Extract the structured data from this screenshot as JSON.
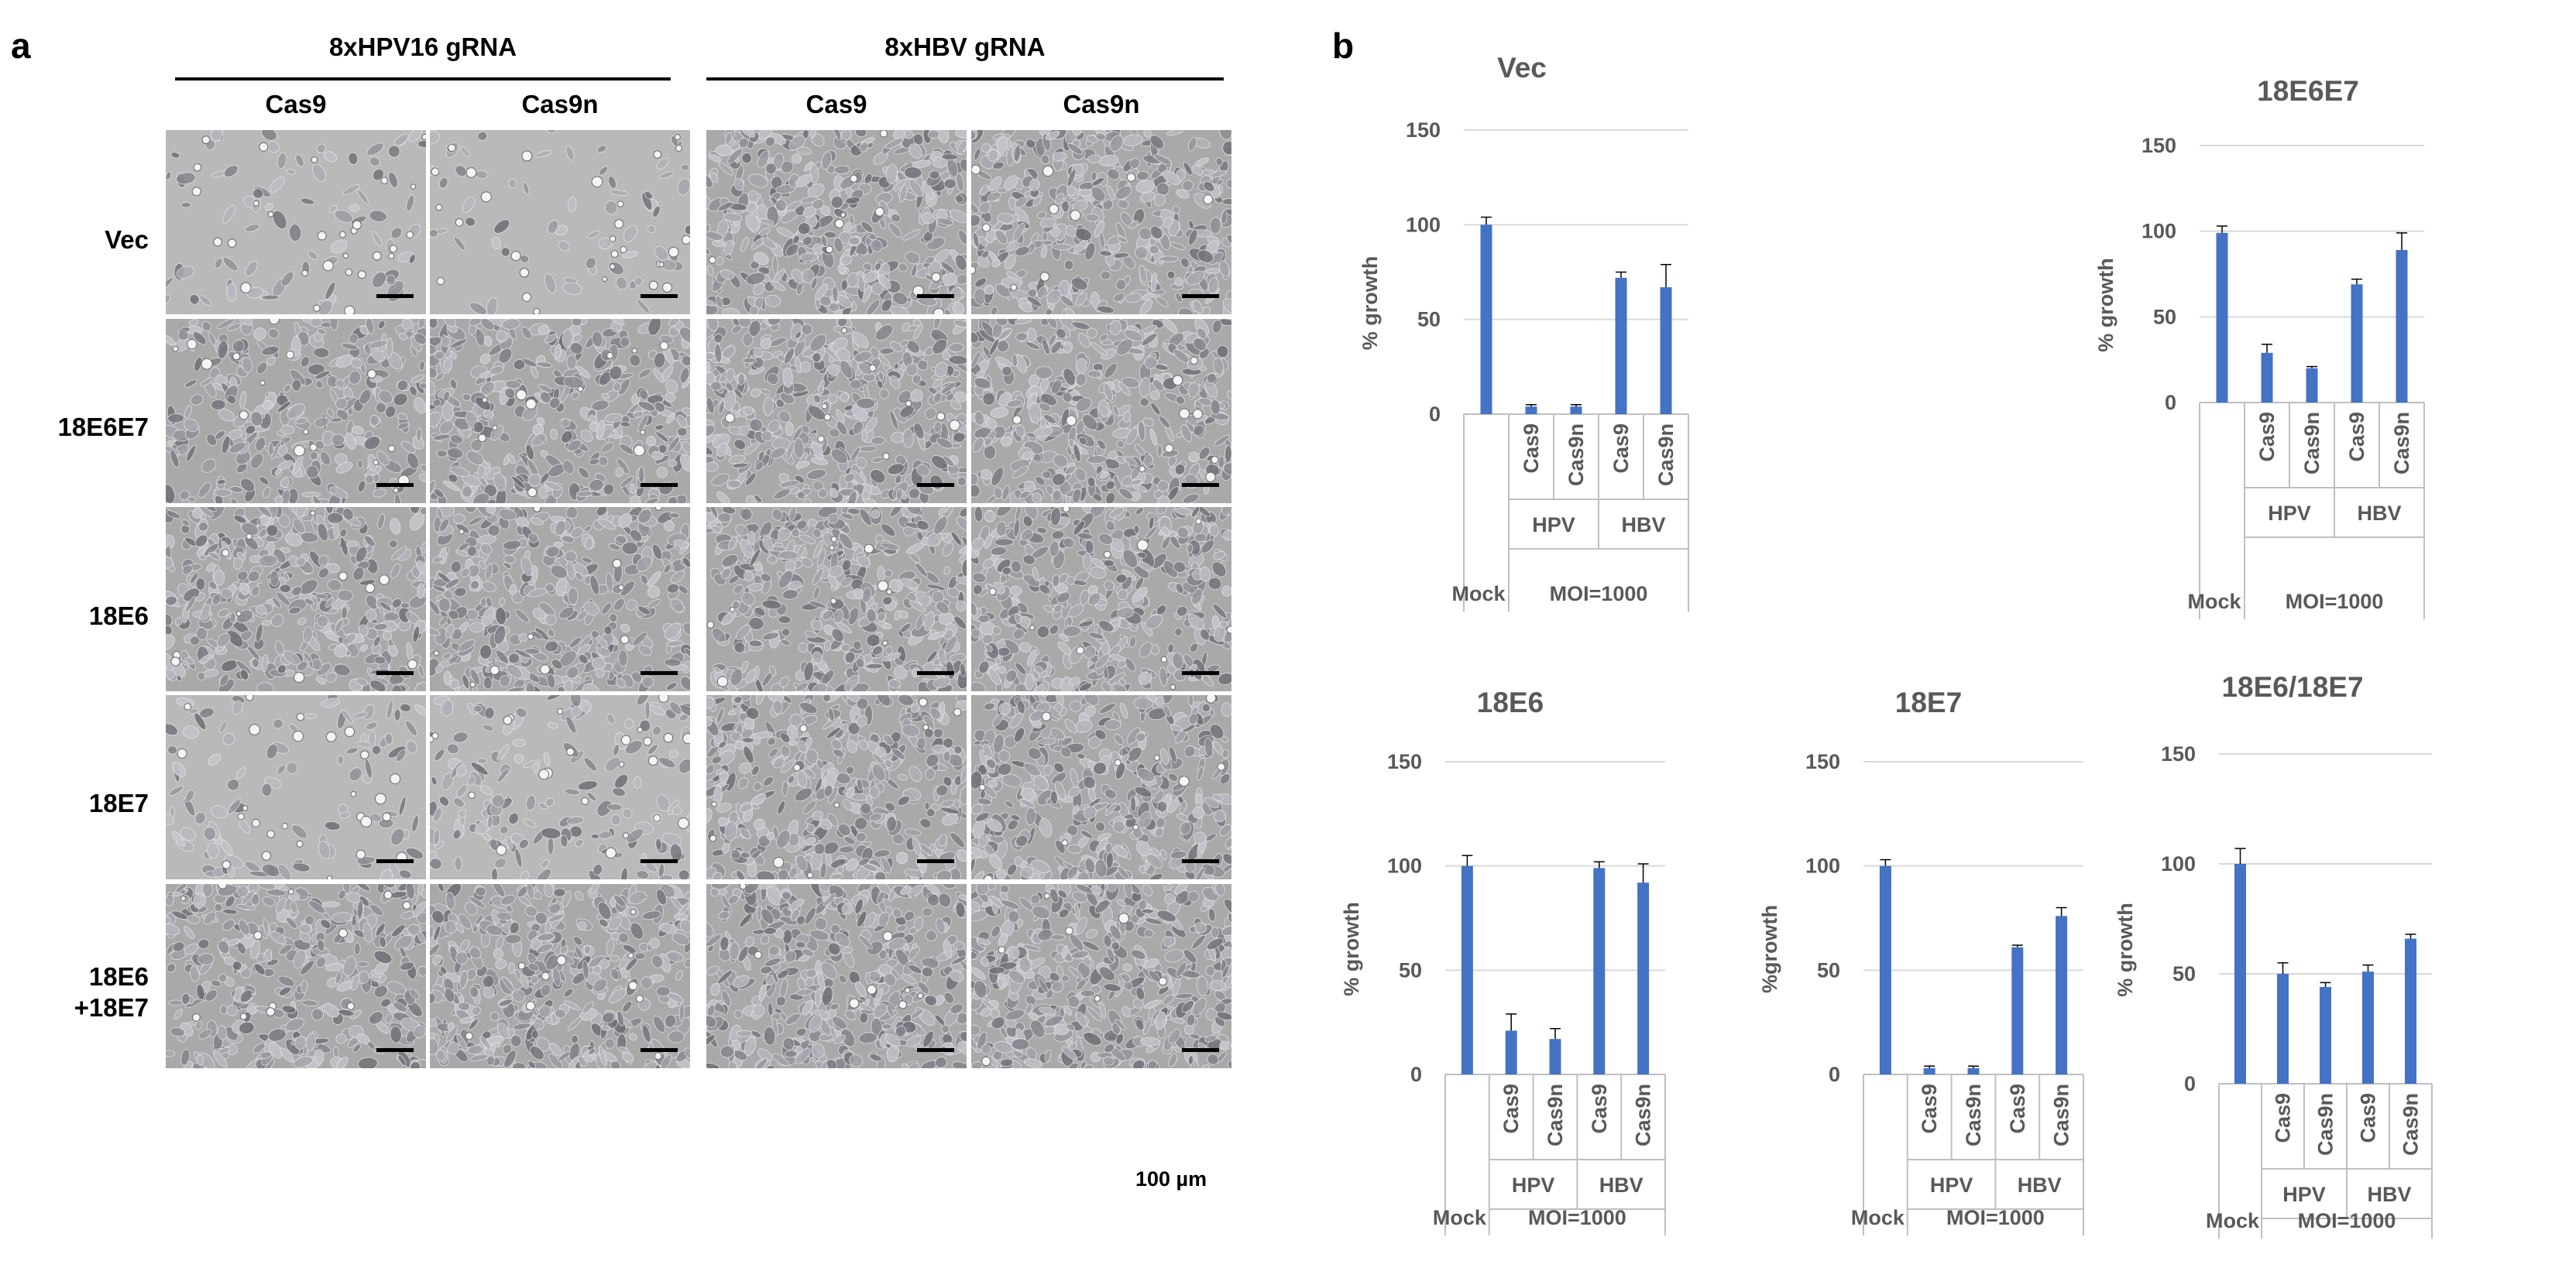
{
  "figure": {
    "panel_a": {
      "letter": "a",
      "groups": [
        {
          "title": "8xHPV16 gRNA",
          "columns": [
            "Cas9",
            "Cas9n"
          ]
        },
        {
          "title": "8xHBV gRNA",
          "columns": [
            "Cas9",
            "Cas9n"
          ]
        }
      ],
      "rows": [
        "Vec",
        "18E6E7",
        "18E6",
        "18E7",
        "18E6\n+18E7"
      ],
      "scale_label": "100 µm",
      "density": [
        [
          0.1,
          0.06,
          0.85,
          0.85
        ],
        [
          0.6,
          0.75,
          0.85,
          0.85
        ],
        [
          0.8,
          0.8,
          0.85,
          0.85
        ],
        [
          0.15,
          0.3,
          0.85,
          0.85
        ],
        [
          0.75,
          0.85,
          0.9,
          0.95
        ]
      ]
    },
    "panel_b": {
      "letter": "b"
    }
  },
  "chart_data": [
    {
      "type": "bar",
      "title": "Vec",
      "ylabel": "% growth",
      "ylim": [
        0,
        150
      ],
      "yticks": [
        0,
        50,
        100,
        150
      ],
      "categories": [
        "",
        "Cas9",
        "Cas9n",
        "Cas9",
        "Cas9n"
      ],
      "values": [
        100,
        4,
        4,
        72,
        67
      ],
      "errors": [
        4,
        1,
        1,
        3,
        12
      ],
      "groups": [
        "HPV",
        "HBV"
      ],
      "footer": [
        "Mock",
        "MOI=1000"
      ],
      "color": "#4472c4"
    },
    {
      "type": "bar",
      "title": "18E6E7",
      "ylabel": "% growth",
      "ylim": [
        0,
        150
      ],
      "yticks": [
        0,
        50,
        100,
        150
      ],
      "categories": [
        "",
        "Cas9",
        "Cas9n",
        "Cas9",
        "Cas9n"
      ],
      "values": [
        99,
        29,
        20,
        69,
        89
      ],
      "errors": [
        4,
        5,
        1,
        3,
        10
      ],
      "groups": [
        "HPV",
        "HBV"
      ],
      "footer": [
        "Mock",
        "MOI=1000"
      ],
      "color": "#4472c4"
    },
    {
      "type": "bar",
      "title": "18E6",
      "ylabel": "% growth",
      "ylim": [
        0,
        150
      ],
      "yticks": [
        0,
        50,
        100,
        150
      ],
      "categories": [
        "",
        "Cas9",
        "Cas9n",
        "Cas9",
        "Cas9n"
      ],
      "values": [
        100,
        21,
        17,
        99,
        92
      ],
      "errors": [
        5,
        8,
        5,
        3,
        9
      ],
      "groups": [
        "HPV",
        "HBV"
      ],
      "footer": [
        "Mock",
        "MOI=1000"
      ],
      "color": "#4472c4"
    },
    {
      "type": "bar",
      "title": "18E7",
      "ylabel": "%growth",
      "ylim": [
        0,
        150
      ],
      "yticks": [
        0,
        50,
        100,
        150
      ],
      "categories": [
        "",
        "Cas9",
        "Cas9n",
        "Cas9",
        "Cas9n"
      ],
      "values": [
        100,
        3,
        3,
        61,
        76
      ],
      "errors": [
        3,
        1,
        1,
        1,
        4
      ],
      "groups": [
        "HPV",
        "HBV"
      ],
      "footer": [
        "Mock",
        "MOI=1000"
      ],
      "color": "#4472c4"
    },
    {
      "type": "bar",
      "title": "18E6/18E7",
      "ylabel": "% growth",
      "ylim": [
        0,
        150
      ],
      "yticks": [
        0,
        50,
        100,
        150
      ],
      "categories": [
        "",
        "Cas9",
        "Cas9n",
        "Cas9",
        "Cas9n"
      ],
      "values": [
        100,
        50,
        44,
        51,
        66
      ],
      "errors": [
        7,
        5,
        2,
        3,
        2
      ],
      "groups": [
        "HPV",
        "HBV"
      ],
      "footer": [
        "Mock",
        "MOI=1000"
      ],
      "color": "#4472c4"
    }
  ]
}
